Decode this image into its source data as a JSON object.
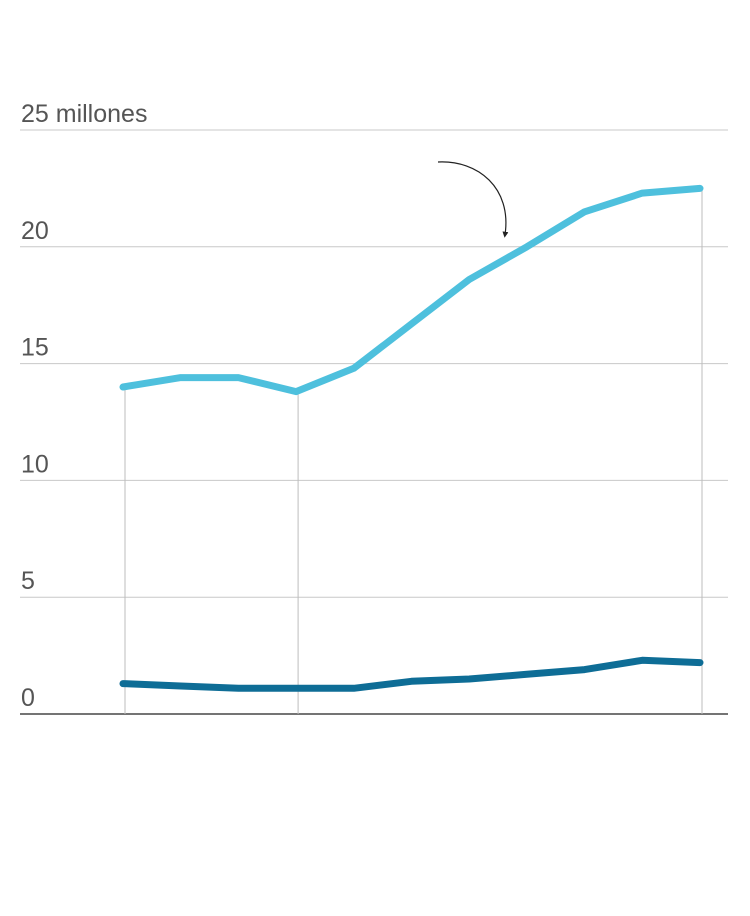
{
  "chart_data": {
    "type": "line",
    "title": "",
    "xlabel": "",
    "ylabel": "",
    "ylim": [
      0,
      25
    ],
    "yticks": [
      {
        "value": 25,
        "label": "25 millones"
      },
      {
        "value": 20,
        "label": "20"
      },
      {
        "value": 15,
        "label": "15"
      },
      {
        "value": 10,
        "label": "10"
      },
      {
        "value": 5,
        "label": "5"
      },
      {
        "value": 0,
        "label": "0"
      }
    ],
    "grid": true,
    "x": [
      0,
      1,
      2,
      3,
      4,
      5,
      6,
      7,
      8,
      9,
      10
    ],
    "vertical_reference_lines_at_x": [
      0,
      3,
      10
    ],
    "series": [
      {
        "values": [
          14.0,
          14.4,
          14.4,
          13.8,
          14.8,
          16.7,
          18.6,
          20.0,
          21.5,
          22.3,
          22.5
        ],
        "color": "#4ec0dd"
      },
      {
        "values": [
          1.3,
          1.2,
          1.1,
          1.1,
          1.1,
          1.4,
          1.5,
          1.7,
          1.9,
          2.3,
          2.2
        ],
        "color": "#0e6d96"
      }
    ],
    "annotations": [
      {
        "type": "curved-arrow",
        "points_to_series": 0
      }
    ]
  },
  "colors": {
    "gridline": "#c8c8c8",
    "baseline": "#222222",
    "tick_text": "#555555",
    "reference_line": "#bdbdbd",
    "arrow": "#222222"
  }
}
